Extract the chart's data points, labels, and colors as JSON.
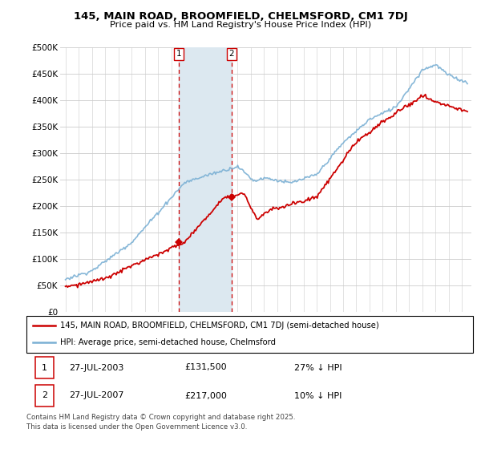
{
  "title": "145, MAIN ROAD, BROOMFIELD, CHELMSFORD, CM1 7DJ",
  "subtitle": "Price paid vs. HM Land Registry's House Price Index (HPI)",
  "ylabel_ticks": [
    "£0",
    "£50K",
    "£100K",
    "£150K",
    "£200K",
    "£250K",
    "£300K",
    "£350K",
    "£400K",
    "£450K",
    "£500K"
  ],
  "ytick_values": [
    0,
    50000,
    100000,
    150000,
    200000,
    250000,
    300000,
    350000,
    400000,
    450000,
    500000
  ],
  "xlim_start": 1994.6,
  "xlim_end": 2025.7,
  "ylim": [
    0,
    500000
  ],
  "purchase1_x": 2003.57,
  "purchase1_y": 131500,
  "purchase2_x": 2007.57,
  "purchase2_y": 217000,
  "shade_color": "#dce8f0",
  "vline_color": "#cc0000",
  "legend_label_red": "145, MAIN ROAD, BROOMFIELD, CHELMSFORD, CM1 7DJ (semi-detached house)",
  "legend_label_blue": "HPI: Average price, semi-detached house, Chelmsford",
  "table_row1": [
    "1",
    "27-JUL-2003",
    "£131,500",
    "27% ↓ HPI"
  ],
  "table_row2": [
    "2",
    "27-JUL-2007",
    "£217,000",
    "10% ↓ HPI"
  ],
  "footer": "Contains HM Land Registry data © Crown copyright and database right 2025.\nThis data is licensed under the Open Government Licence v3.0.",
  "red_color": "#cc0000",
  "blue_color": "#7ab0d4",
  "grid_color": "#cccccc",
  "bg_color": "#ffffff"
}
